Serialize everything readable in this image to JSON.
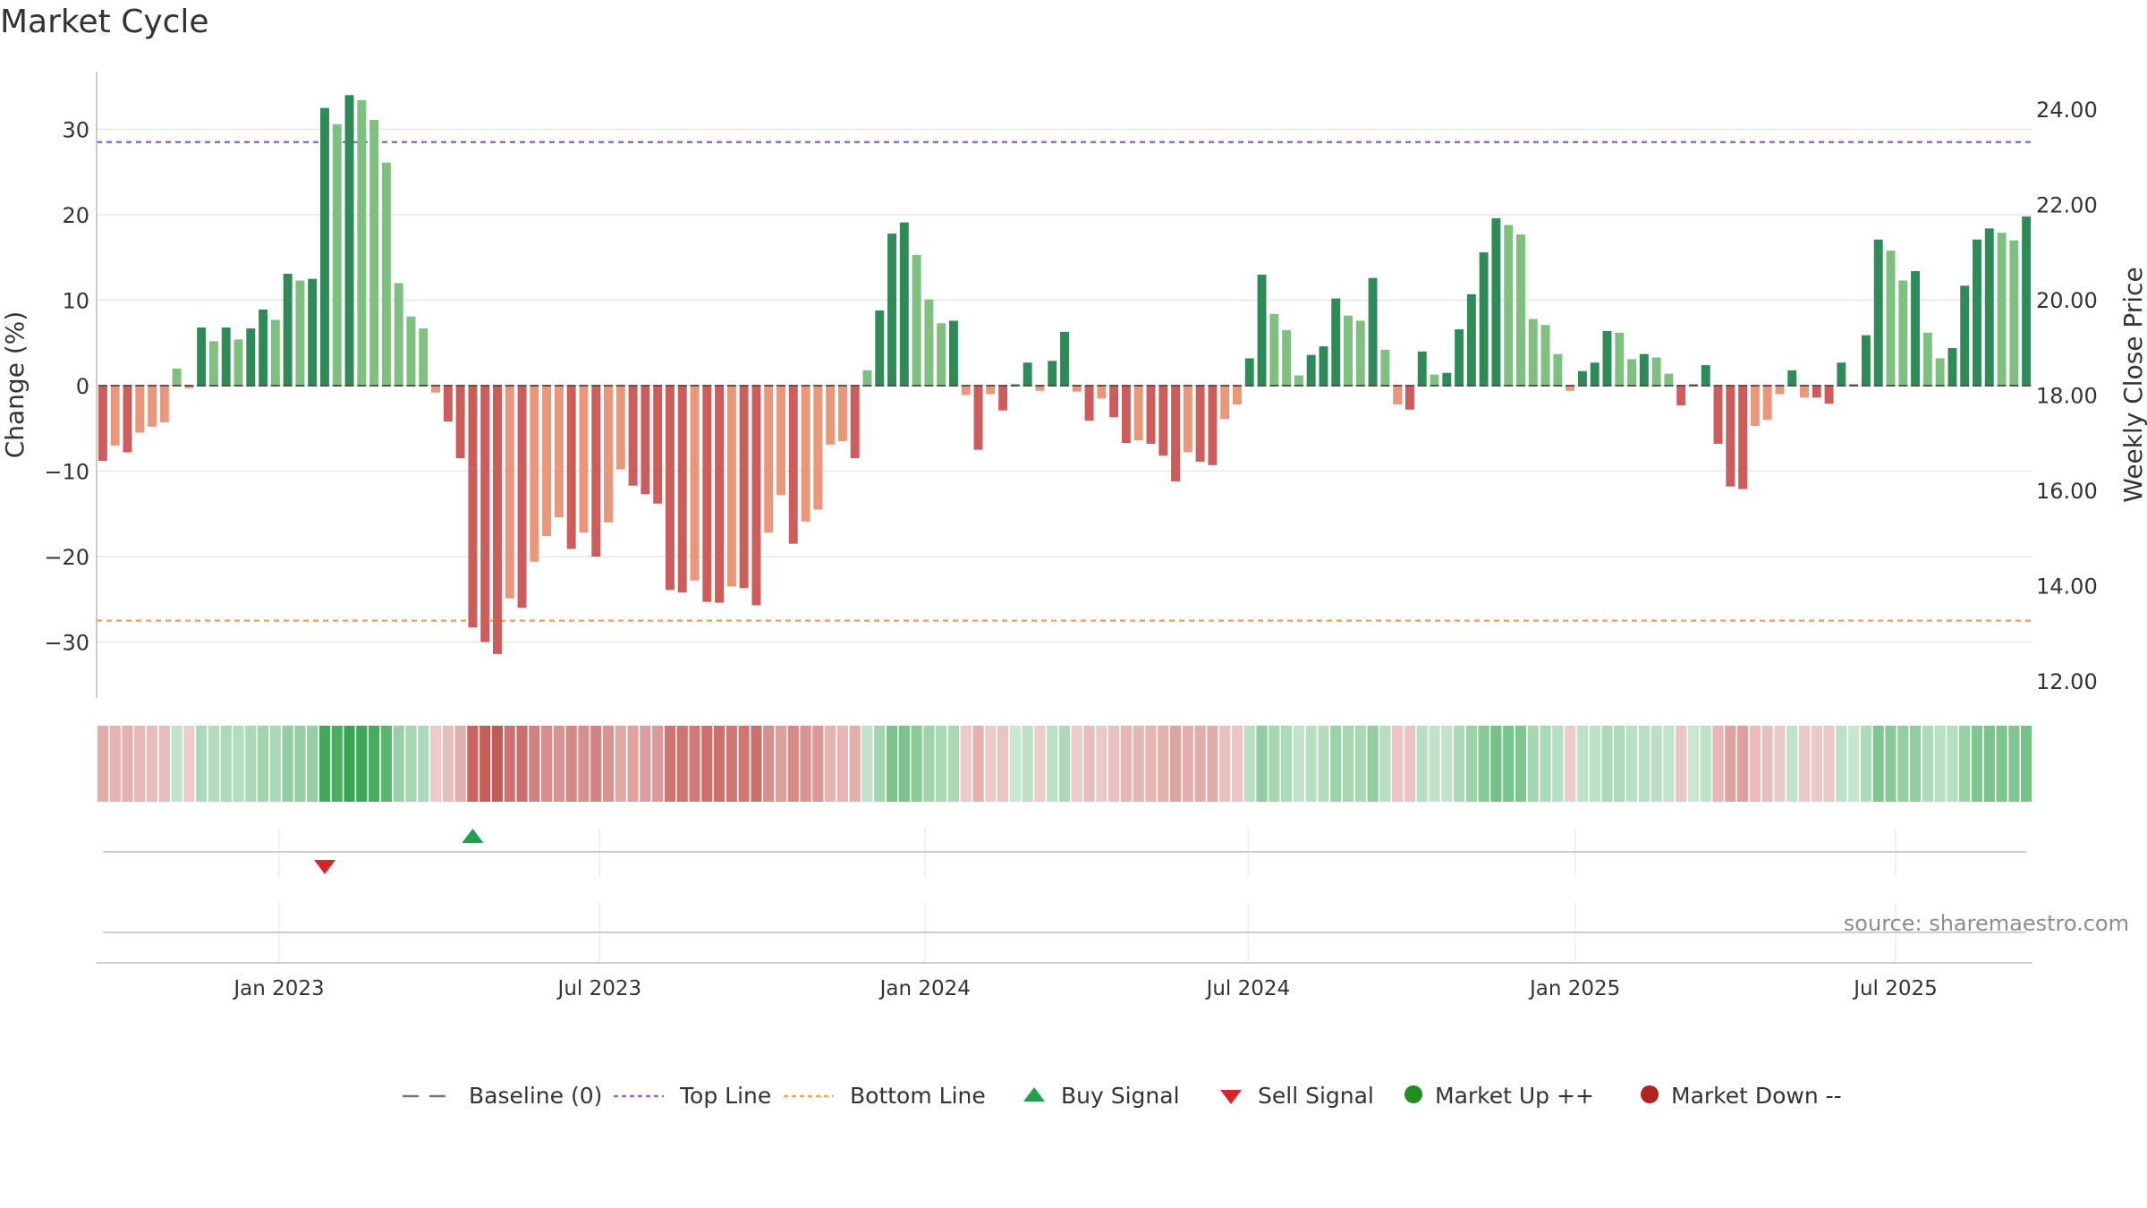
{
  "title": "Market Cycle",
  "source": "source: sharemaestro.com",
  "colors": {
    "up_dark": "#2e8b57",
    "up_light": "#7fbf7f",
    "down_dark": "#cd5c5c",
    "down_light": "#e9967a",
    "top_line": "#9966cc",
    "bottom_line": "#f4a460",
    "buy": "#22a050",
    "sell": "#d62728",
    "market_up": "#228b22",
    "market_down": "#b22222",
    "baseline": "#777777"
  },
  "legend": [
    {
      "label": "Baseline (0)",
      "icon": "dash-line-gray"
    },
    {
      "label": "Top Line",
      "icon": "dotted-line-purple"
    },
    {
      "label": "Bottom Line",
      "icon": "dotted-line-orange"
    },
    {
      "label": "Buy Signal",
      "icon": "triangle-up-green"
    },
    {
      "label": "Sell Signal",
      "icon": "triangle-down-red"
    },
    {
      "label": "Market Up ++",
      "icon": "circle-green"
    },
    {
      "label": "Market Down --",
      "icon": "circle-red"
    }
  ],
  "chart_data": {
    "type": "bar",
    "title": "Market Cycle",
    "ylabel": "Change (%)",
    "y2label": "Weekly Close Price",
    "ylim": [
      -37,
      37
    ],
    "y2lim": [
      11.5,
      24.5
    ],
    "yticks": [
      30,
      20,
      10,
      0,
      -10,
      -20,
      -30
    ],
    "ytick_labels": [
      "30",
      "20",
      "10",
      "0",
      "−10",
      "−20",
      "−30"
    ],
    "y2ticks": [
      "24.00",
      "22.00",
      "20.00",
      "18.00",
      "16.00",
      "14.00",
      "12.00"
    ],
    "xticks": [
      "Jan 2023",
      "Jul 2023",
      "Jan 2024",
      "Jul 2024",
      "Jan 2025",
      "Jul 2025"
    ],
    "xtick_weeks": [
      14.8,
      40.8,
      67.2,
      93.4,
      119.9,
      145.9
    ],
    "start_date": "2022-10-03",
    "top_line": 28.5,
    "bottom_line": -27.5,
    "grid": true,
    "values": [
      -8.8,
      -7.0,
      -7.8,
      -5.5,
      -4.8,
      -4.3,
      2.0,
      -0.3,
      6.8,
      5.2,
      6.8,
      5.4,
      6.7,
      8.9,
      7.7,
      13.1,
      12.3,
      12.5,
      32.5,
      30.6,
      34.0,
      33.4,
      31.1,
      26.1,
      12.0,
      8.1,
      6.7,
      -0.8,
      -4.2,
      -8.5,
      -28.3,
      -30.0,
      -31.4,
      -24.9,
      -26.0,
      -20.6,
      -17.6,
      -15.4,
      -19.1,
      -17.2,
      -20.0,
      -16.0,
      -9.8,
      -11.7,
      -12.7,
      -13.8,
      -23.9,
      -24.2,
      -22.8,
      -25.3,
      -25.4,
      -23.5,
      -23.7,
      -25.7,
      -17.2,
      -12.8,
      -18.5,
      -15.9,
      -14.5,
      -6.9,
      -6.5,
      -8.5,
      1.8,
      8.8,
      17.8,
      19.1,
      15.3,
      10.1,
      7.3,
      7.6,
      -1.1,
      -7.5,
      -1.0,
      -2.9,
      0.2,
      2.7,
      -0.6,
      2.9,
      6.3,
      -0.7,
      -4.1,
      -1.5,
      -3.7,
      -6.7,
      -6.4,
      -6.8,
      -8.2,
      -11.2,
      -7.8,
      -8.9,
      -9.3,
      -3.9,
      -2.2,
      3.2,
      13.0,
      8.4,
      6.5,
      1.2,
      3.6,
      4.6,
      10.2,
      8.2,
      7.6,
      12.6,
      4.2,
      -2.2,
      -2.8,
      4.0,
      1.3,
      1.5,
      6.6,
      10.7,
      15.6,
      19.6,
      18.8,
      17.7,
      7.8,
      7.1,
      3.7,
      -0.6,
      1.7,
      2.7,
      6.4,
      6.2,
      3.1,
      3.7,
      3.3,
      1.4,
      -2.3,
      0.2,
      2.4,
      -6.8,
      -11.8,
      -12.1,
      -4.7,
      -4.0,
      -1.0,
      1.8,
      -1.4,
      -1.4,
      -2.1,
      2.7,
      0.2,
      5.9,
      17.1,
      15.8,
      12.3,
      13.4,
      6.2,
      3.2,
      4.4,
      11.7,
      17.1,
      18.4,
      17.9,
      17.0,
      19.8
    ],
    "heatmap_strip": "weekly market state intensity",
    "signals": [
      {
        "type": "sell",
        "date": "2023-02-06"
      },
      {
        "type": "buy",
        "date": "2023-05-01"
      }
    ]
  }
}
